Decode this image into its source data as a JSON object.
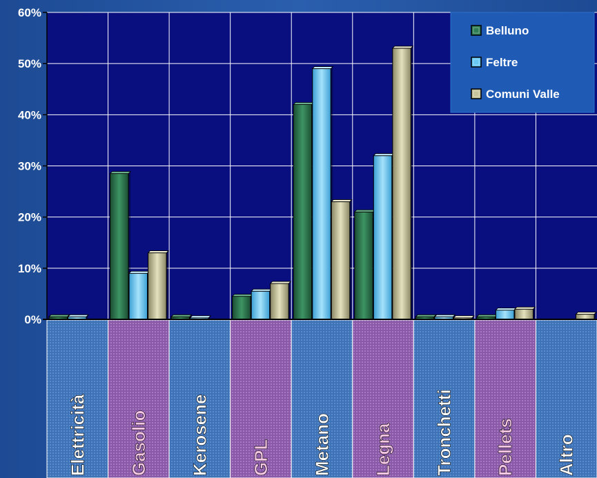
{
  "chart_data": {
    "type": "bar",
    "categories": [
      "Elettricità",
      "Gasolio",
      "Kerosene",
      "GPL",
      "Metano",
      "Legna",
      "Tronchetti",
      "Pellets",
      "Altro"
    ],
    "series": [
      {
        "name": "Belluno",
        "values": [
          0.5,
          28.5,
          0.5,
          4.5,
          42,
          21,
          0.5,
          0.5,
          0
        ]
      },
      {
        "name": "Feltre",
        "values": [
          0.5,
          9,
          0.3,
          5.5,
          49,
          32,
          0.5,
          1.8,
          0
        ]
      },
      {
        "name": "Comuni Valle",
        "values": [
          0,
          13,
          0,
          7,
          23,
          53,
          0.3,
          2,
          1
        ]
      }
    ],
    "y_ticks": [
      "0%",
      "10%",
      "20%",
      "30%",
      "40%",
      "50%",
      "60%"
    ],
    "ylim": [
      0,
      60
    ],
    "grid": true,
    "legend_position": "top-right",
    "colors": {
      "plot_background": "#0a0f80",
      "Belluno": "#2f7d52",
      "Feltre": "#67c8f3",
      "Comuni Valle": "#c7c39a",
      "category_blue": "#3f73b8",
      "category_purple": "#8a5aa8",
      "category_text_white": "#ffffff",
      "category_text_pink": "#f5c7e4"
    }
  }
}
